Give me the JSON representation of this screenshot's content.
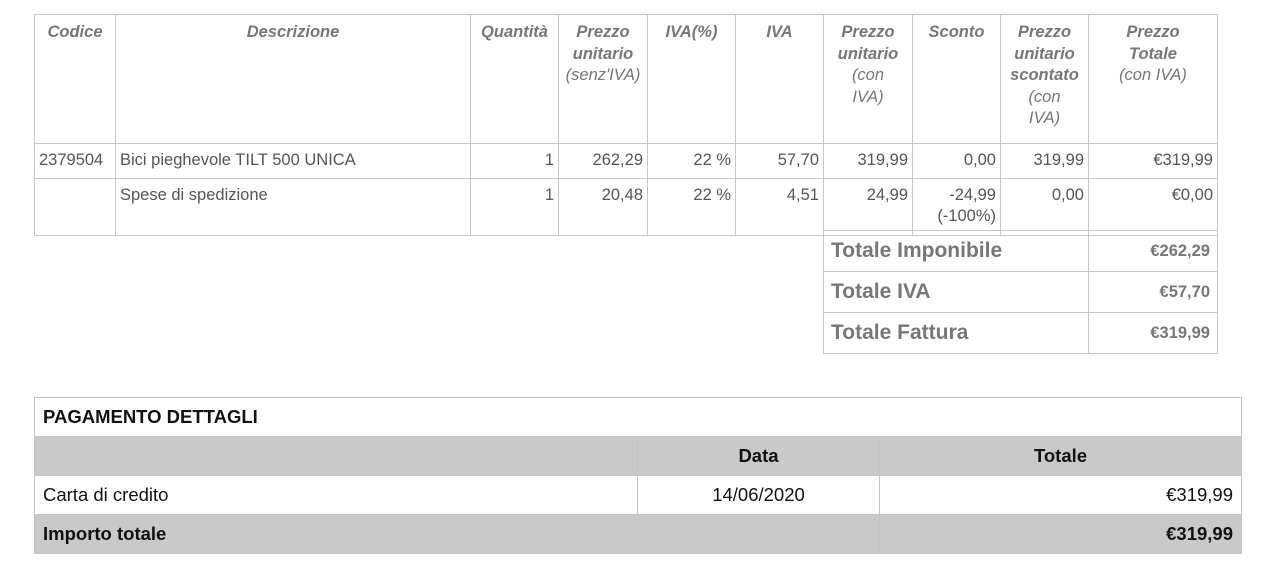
{
  "items_table": {
    "headers": {
      "codice": "Codice",
      "descrizione": "Descrizione",
      "quantita": "Quantità",
      "prezzo_unitario": {
        "main": [
          "Prezzo",
          "unitario"
        ],
        "sub": [
          "(senz'IVA)"
        ]
      },
      "iva_perc": "IVA(%)",
      "iva": "IVA",
      "prezzo_con_iva": {
        "main": [
          "Prezzo",
          "unitario"
        ],
        "sub": [
          "(con",
          "IVA)"
        ]
      },
      "sconto": "Sconto",
      "prezzo_scontato": {
        "main": [
          "Prezzo",
          "unitario",
          "scontato"
        ],
        "sub": [
          "(con",
          "IVA)"
        ]
      },
      "prezzo_totale": {
        "main": [
          "Prezzo",
          "Totale"
        ],
        "sub": [
          "(con IVA)"
        ]
      }
    },
    "rows": [
      {
        "codice": "2379504",
        "descrizione": "Bici pieghevole TILT 500 UNICA",
        "quantita": "1",
        "prezzo_unitario": "262,29",
        "iva_perc": "22 %",
        "iva": "57,70",
        "prezzo_con_iva": "319,99",
        "sconto": "0,00",
        "sconto_perc": "",
        "prezzo_scontato": "319,99",
        "prezzo_totale": "€319,99"
      },
      {
        "codice": "",
        "descrizione": "Spese di spedizione",
        "quantita": "1",
        "prezzo_unitario": "20,48",
        "iva_perc": "22 %",
        "iva": "4,51",
        "prezzo_con_iva": "24,99",
        "sconto": "-24,99",
        "sconto_perc": "(-100%)",
        "prezzo_scontato": "0,00",
        "prezzo_totale": "€0,00"
      }
    ]
  },
  "totals": [
    {
      "label": "Totale Imponibile",
      "value": "€262,29"
    },
    {
      "label": "Totale IVA",
      "value": "€57,70"
    },
    {
      "label": "Totale Fattura",
      "value": "€319,99"
    }
  ],
  "payment": {
    "title": "PAGAMENTO DETTAGLI",
    "col_data": "Data",
    "col_totale": "Totale",
    "rows": [
      {
        "metodo": "Carta di credito",
        "data": "14/06/2020",
        "totale": "€319,99"
      }
    ],
    "importo_label": "Importo totale",
    "importo_value": "€319,99"
  }
}
